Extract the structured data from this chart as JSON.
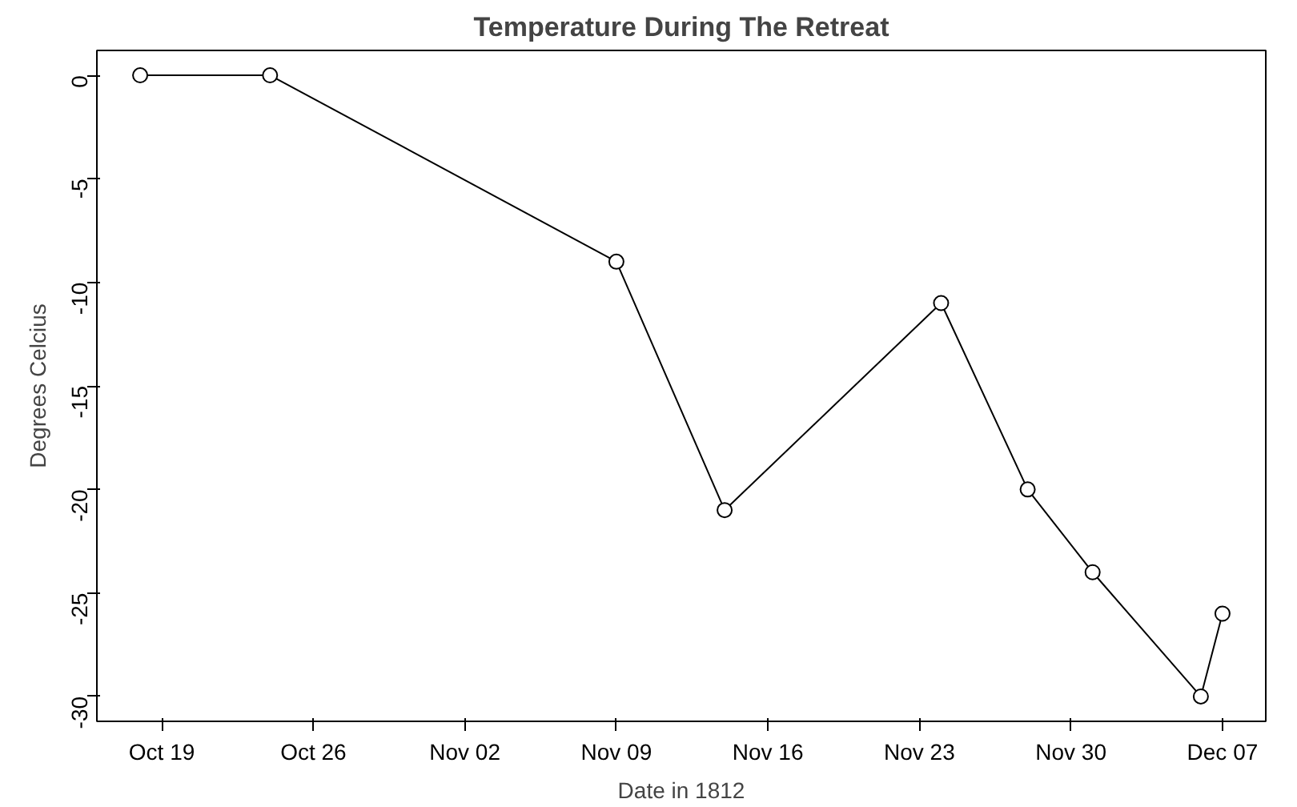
{
  "chart_data": {
    "type": "line",
    "title": "Temperature During The Retreat",
    "xlabel": "Date in 1812",
    "ylabel": "Degrees Celcius",
    "x": [
      "1812-10-18",
      "1812-10-24",
      "1812-11-09",
      "1812-11-14",
      "1812-11-24",
      "1812-11-28",
      "1812-12-01",
      "1812-12-06",
      "1812-12-07"
    ],
    "series": [
      {
        "color": "#000000",
        "values": [
          0,
          0,
          -9,
          -21,
          -11,
          -20,
          -24,
          -30,
          -26
        ]
      }
    ],
    "xlim": [
      "1812-10-16",
      "1812-12-09"
    ],
    "xticks": [
      {
        "value": "1812-10-19",
        "label": "Oct 19"
      },
      {
        "value": "1812-10-26",
        "label": "Oct 26"
      },
      {
        "value": "1812-11-02",
        "label": "Nov 02"
      },
      {
        "value": "1812-11-09",
        "label": "Nov 09"
      },
      {
        "value": "1812-11-16",
        "label": "Nov 16"
      },
      {
        "value": "1812-11-23",
        "label": "Nov 23"
      },
      {
        "value": "1812-11-30",
        "label": "Nov 30"
      },
      {
        "value": "1812-12-07",
        "label": "Dec 07"
      }
    ],
    "ylim": [
      -31.2,
      1.2
    ],
    "yticks": [
      -30,
      -25,
      -20,
      -15,
      -10,
      -5,
      0
    ],
    "marker": "circle",
    "line_style": "solid"
  }
}
